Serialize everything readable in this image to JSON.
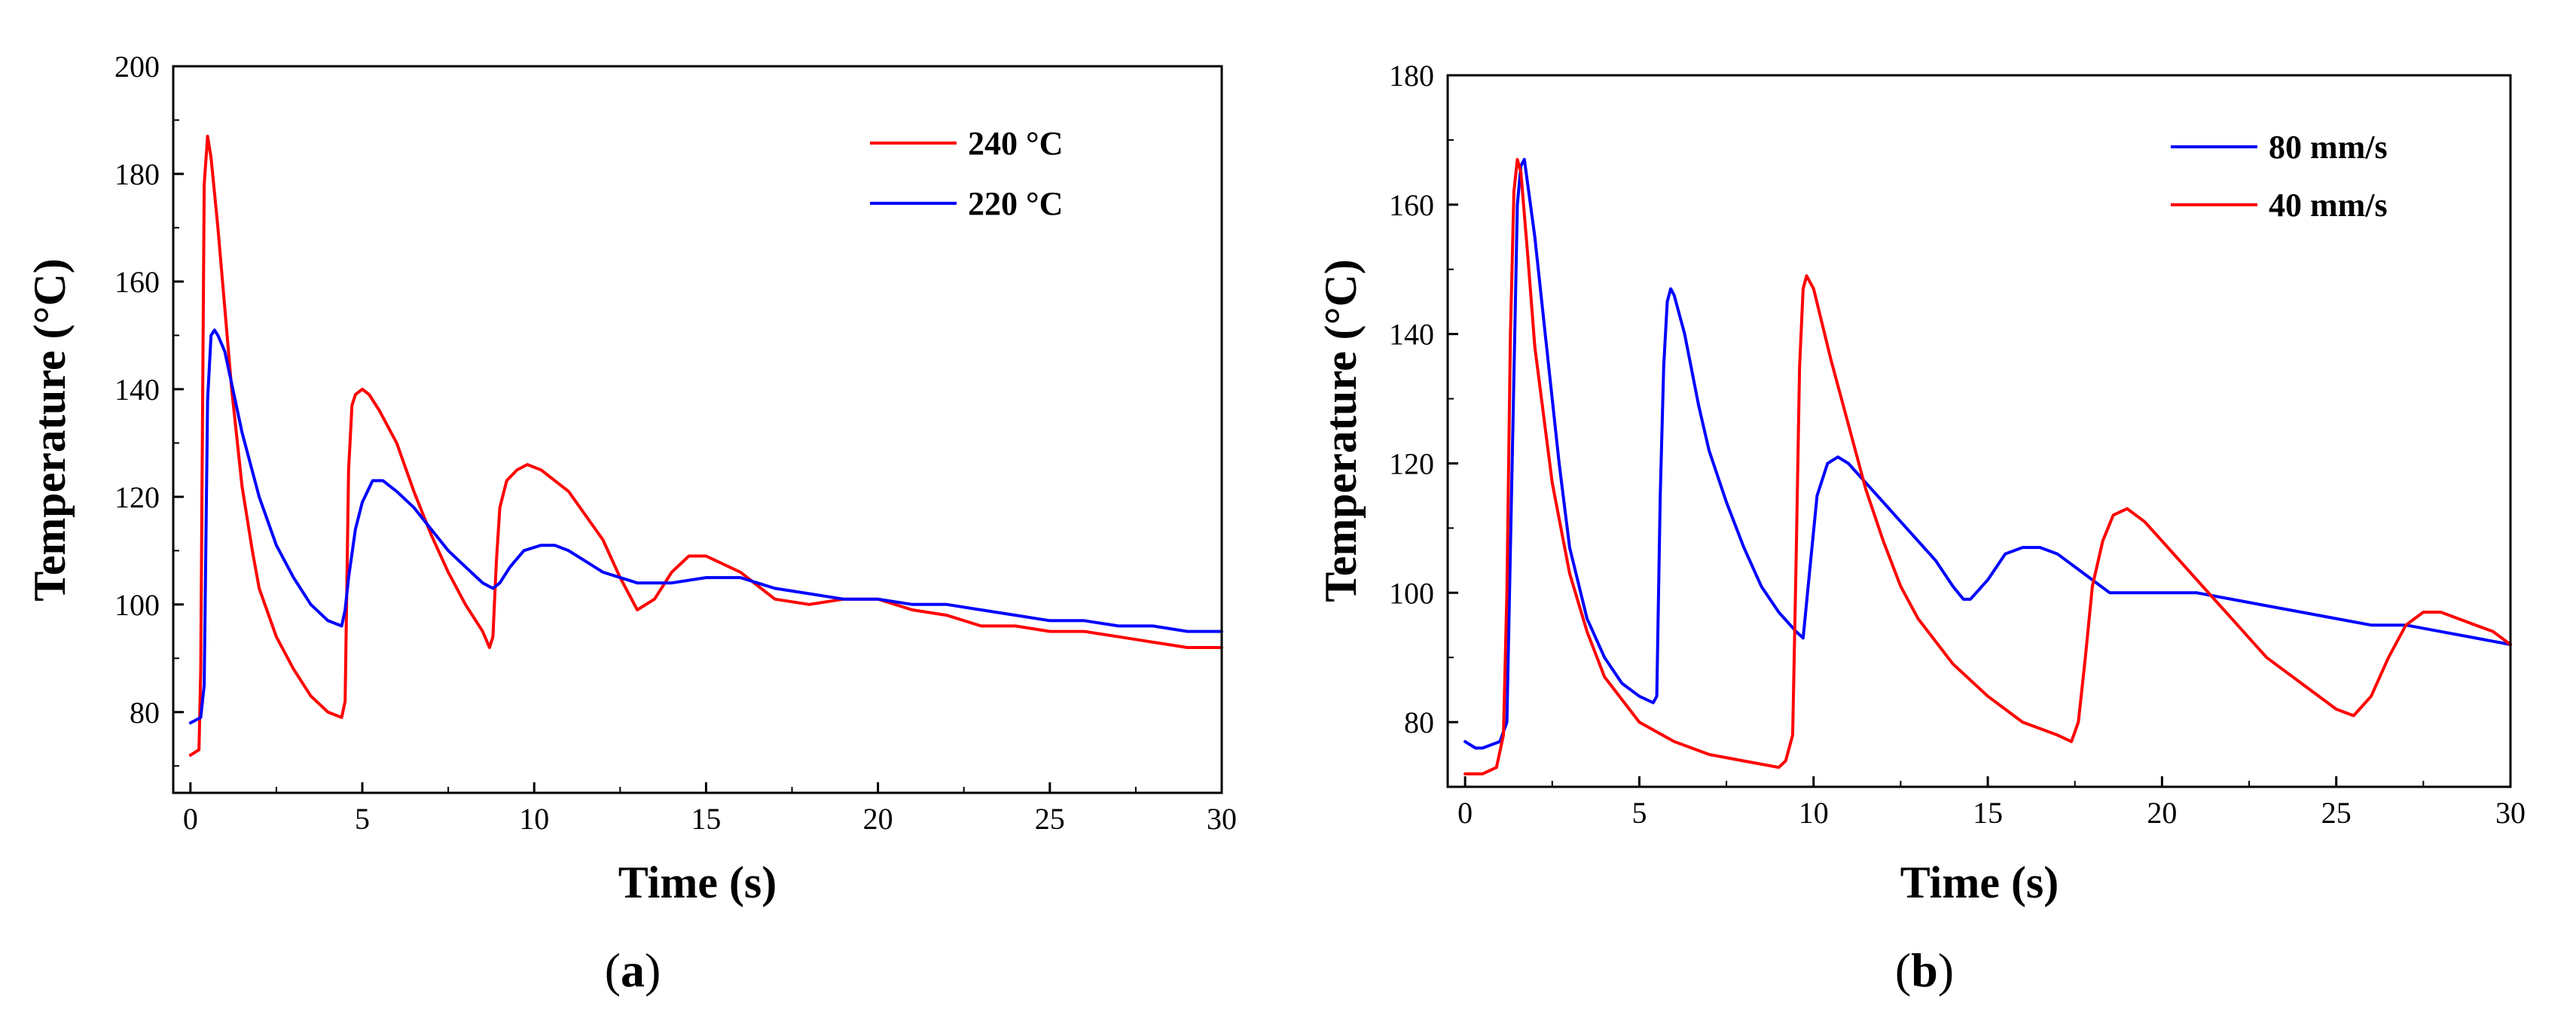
{
  "chart_data": [
    {
      "type": "line",
      "panel_label": "(a)",
      "panel_letter": "a",
      "xlabel": "Time (s)",
      "ylabel": "Temperature (°C)",
      "xlim": [
        -0.5,
        30
      ],
      "ylim": [
        65,
        200
      ],
      "xticks": [
        0,
        5,
        10,
        15,
        20,
        25,
        30
      ],
      "yticks": [
        80,
        100,
        120,
        140,
        160,
        180,
        200
      ],
      "legend_position": "top-right",
      "series": [
        {
          "name": "240 °C",
          "color": "#ff0000",
          "x": [
            0,
            0.25,
            0.3,
            0.4,
            0.5,
            0.6,
            0.8,
            1.0,
            1.2,
            1.5,
            1.8,
            2.0,
            2.5,
            3.0,
            3.5,
            4.0,
            4.4,
            4.5,
            4.6,
            4.7,
            4.8,
            5.0,
            5.2,
            5.5,
            6.0,
            6.5,
            7.0,
            7.5,
            8.0,
            8.5,
            8.7,
            8.8,
            8.9,
            9.0,
            9.2,
            9.5,
            9.8,
            10.2,
            11.0,
            12.0,
            12.5,
            13.0,
            13.5,
            14.0,
            14.5,
            15.0,
            16.0,
            17.0,
            18.0,
            19.0,
            19.5,
            20.0,
            21.0,
            22.0,
            23.0,
            24.0,
            25.0,
            26.0,
            27.0,
            28.0,
            29.0,
            30.0
          ],
          "values": [
            72,
            73,
            88,
            178,
            187,
            183,
            170,
            155,
            140,
            122,
            110,
            103,
            94,
            88,
            83,
            80,
            79,
            82,
            125,
            137,
            139,
            140,
            139,
            136,
            130,
            121,
            113,
            106,
            100,
            95,
            92,
            94,
            108,
            118,
            123,
            125,
            126,
            125,
            121,
            112,
            105,
            99,
            101,
            106,
            109,
            109,
            106,
            101,
            100,
            101,
            101,
            101,
            99,
            98,
            96,
            96,
            95,
            95,
            94,
            93,
            92,
            92
          ]
        },
        {
          "name": "220 °C",
          "color": "#0000ff",
          "x": [
            0,
            0.3,
            0.4,
            0.5,
            0.6,
            0.7,
            0.8,
            1.0,
            1.2,
            1.5,
            2.0,
            2.5,
            3.0,
            3.5,
            4.0,
            4.4,
            4.5,
            4.6,
            4.8,
            5.0,
            5.3,
            5.6,
            6.0,
            6.5,
            7.0,
            7.5,
            8.0,
            8.5,
            8.8,
            9.0,
            9.3,
            9.7,
            10.2,
            10.6,
            11.0,
            11.5,
            12.0,
            13.0,
            14.0,
            15.0,
            16.0,
            17.0,
            18.0,
            19.0,
            20.0,
            21.0,
            22.0,
            23.0,
            24.0,
            25.0,
            26.0,
            27.0,
            28.0,
            29.0,
            30.0
          ],
          "values": [
            78,
            79,
            85,
            138,
            150,
            151,
            150,
            147,
            141,
            132,
            120,
            111,
            105,
            100,
            97,
            96,
            99,
            105,
            114,
            119,
            123,
            123,
            121,
            118,
            114,
            110,
            107,
            104,
            103,
            104,
            107,
            110,
            111,
            111,
            110,
            108,
            106,
            104,
            104,
            105,
            105,
            103,
            102,
            101,
            101,
            100,
            100,
            99,
            98,
            97,
            97,
            96,
            96,
            95,
            95
          ]
        }
      ]
    },
    {
      "type": "line",
      "panel_label": "(b)",
      "panel_letter": "b",
      "xlabel": "Time (s)",
      "ylabel": "Temperature (°C)",
      "xlim": [
        -0.5,
        30
      ],
      "ylim": [
        70,
        180
      ],
      "xticks": [
        0,
        5,
        10,
        15,
        20,
        25,
        30
      ],
      "yticks": [
        80,
        100,
        120,
        140,
        160,
        180
      ],
      "legend_position": "top-right",
      "series": [
        {
          "name": "80 mm/s",
          "color": "#0000ff",
          "x": [
            0,
            0.3,
            0.5,
            1.0,
            1.2,
            1.35,
            1.5,
            1.6,
            1.7,
            2.0,
            2.3,
            2.7,
            3.0,
            3.5,
            4.0,
            4.5,
            5.0,
            5.4,
            5.5,
            5.6,
            5.7,
            5.8,
            5.9,
            6.0,
            6.3,
            6.7,
            7.0,
            7.5,
            8.0,
            8.5,
            9.0,
            9.5,
            9.7,
            9.9,
            10.1,
            10.4,
            10.7,
            11.0,
            11.5,
            12.0,
            12.5,
            13.0,
            13.5,
            14.0,
            14.3,
            14.5,
            15.0,
            15.5,
            16.0,
            16.5,
            17.0,
            17.5,
            18.0,
            18.5,
            19.0,
            20.0,
            21.0,
            22.0,
            23.0,
            24.0,
            25.0,
            26.0,
            27.0,
            28.0,
            29.0,
            30.0
          ],
          "values": [
            77,
            76,
            76,
            77,
            80,
            120,
            160,
            166,
            167,
            155,
            140,
            120,
            107,
            96,
            90,
            86,
            84,
            83,
            84,
            115,
            135,
            145,
            147,
            146,
            140,
            129,
            122,
            114,
            107,
            101,
            97,
            94,
            93,
            104,
            115,
            120,
            121,
            120,
            117,
            114,
            111,
            108,
            105,
            101,
            99,
            99,
            102,
            106,
            107,
            107,
            106,
            104,
            102,
            100,
            100,
            100,
            100,
            99,
            98,
            97,
            96,
            95,
            95,
            94,
            93,
            92
          ]
        },
        {
          "name": "40 mm/s",
          "color": "#ff0000",
          "x": [
            0,
            0.5,
            0.9,
            1.1,
            1.2,
            1.3,
            1.4,
            1.5,
            1.6,
            1.8,
            2.0,
            2.5,
            3.0,
            3.5,
            4.0,
            5.0,
            6.0,
            7.0,
            8.0,
            9.0,
            9.2,
            9.4,
            9.5,
            9.6,
            9.7,
            9.8,
            10.0,
            10.5,
            11.0,
            11.5,
            12.0,
            12.5,
            13.0,
            14.0,
            15.0,
            16.0,
            17.0,
            17.4,
            17.6,
            17.8,
            18.0,
            18.3,
            18.6,
            19.0,
            19.5,
            20.0,
            21.0,
            22.0,
            23.0,
            24.0,
            25.0,
            25.5,
            26.0,
            26.5,
            27.0,
            27.5,
            28.0,
            28.5,
            29.0,
            29.5,
            30.0
          ],
          "values": [
            72,
            72,
            73,
            78,
            100,
            140,
            162,
            167,
            165,
            152,
            138,
            117,
            103,
            94,
            87,
            80,
            77,
            75,
            74,
            73,
            74,
            78,
            105,
            135,
            147,
            149,
            147,
            136,
            126,
            116,
            108,
            101,
            96,
            89,
            84,
            80,
            78,
            77,
            80,
            90,
            101,
            108,
            112,
            113,
            111,
            108,
            102,
            96,
            90,
            86,
            82,
            81,
            84,
            90,
            95,
            97,
            97,
            96,
            95,
            94,
            92
          ]
        }
      ]
    }
  ]
}
